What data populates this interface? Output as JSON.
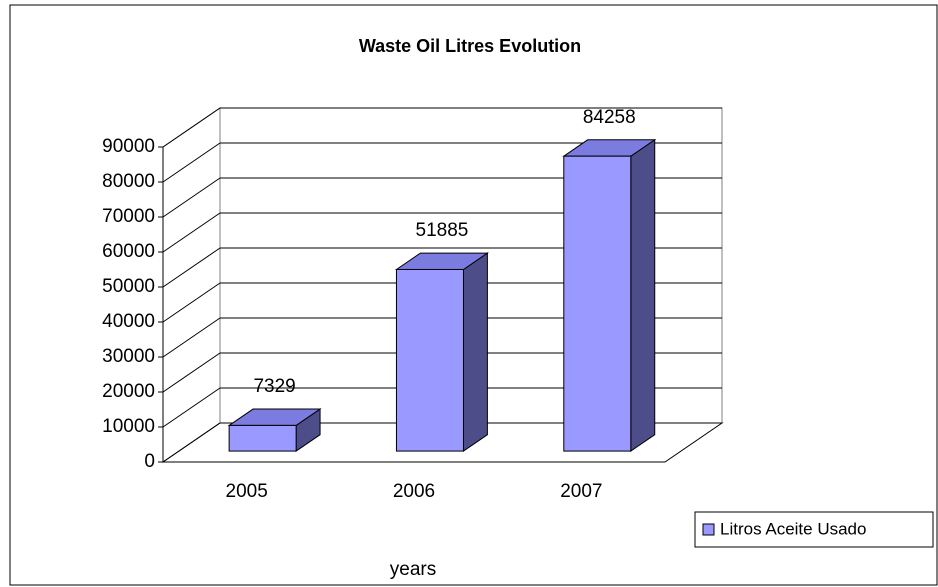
{
  "chart_data": {
    "type": "bar3d",
    "title": "Waste Oil Litres Evolution",
    "x_label": "years",
    "categories": [
      "2005",
      "2006",
      "2007"
    ],
    "series": [
      {
        "name": "Litros Aceite Usado",
        "color": "#9999ff",
        "values": [
          7329,
          51885,
          84258
        ]
      }
    ],
    "ylim": [
      0,
      90000
    ],
    "yticks": [
      0,
      10000,
      20000,
      30000,
      40000,
      50000,
      60000,
      70000,
      80000,
      90000
    ],
    "grid": true,
    "legend": "bottom-right"
  }
}
